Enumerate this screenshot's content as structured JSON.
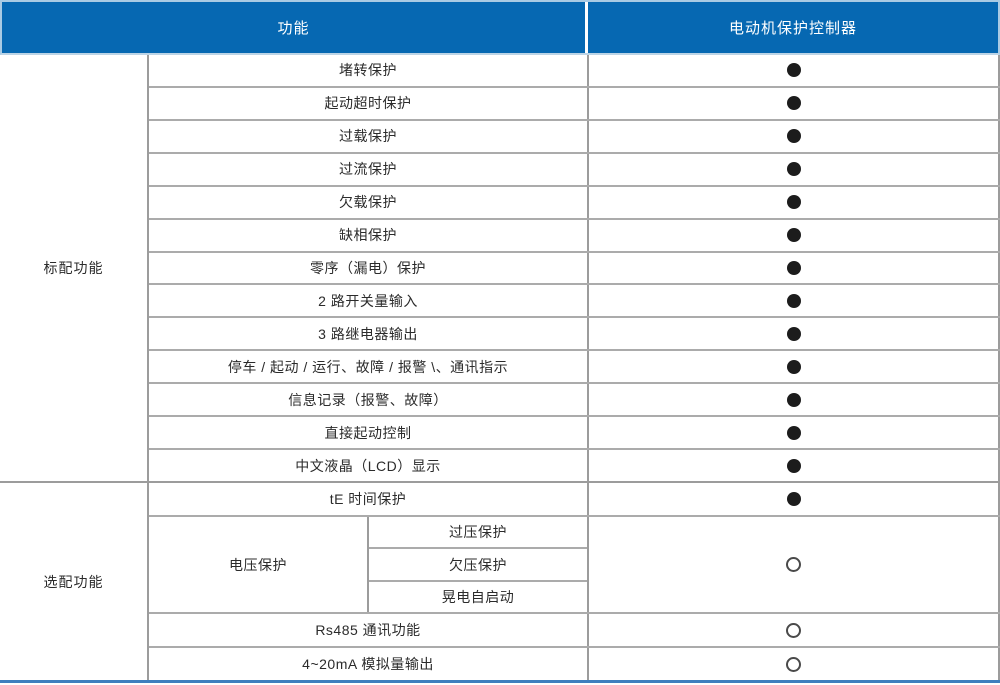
{
  "header": {
    "function_col": "功能",
    "device_col": "电动机保护控制器"
  },
  "colors": {
    "header_blue": "#0668b2",
    "header_light_border": "#a9cbe4",
    "row_border_gray": "#9c9c9c",
    "bottom_line_blue": "#3f7fbe",
    "mark_black": "#1c1c1c"
  },
  "marks_legend": {
    "filled": "included",
    "open": "optional"
  },
  "sections": [
    {
      "category": "标配功能",
      "rows": [
        {
          "label": "堵转保护",
          "mark": "filled"
        },
        {
          "label": "起动超时保护",
          "mark": "filled"
        },
        {
          "label": "过载保护",
          "mark": "filled"
        },
        {
          "label": "过流保护",
          "mark": "filled"
        },
        {
          "label": "欠载保护",
          "mark": "filled"
        },
        {
          "label": "缺相保护",
          "mark": "filled"
        },
        {
          "label": "零序（漏电）保护",
          "mark": "filled"
        },
        {
          "label": "2 路开关量输入",
          "mark": "filled"
        },
        {
          "label": "3 路继电器输出",
          "mark": "filled"
        },
        {
          "label": "停车 / 起动 / 运行、故障 / 报警 \\、通讯指示",
          "mark": "filled"
        },
        {
          "label": "信息记录（报警、故障）",
          "mark": "filled"
        },
        {
          "label": "直接起动控制",
          "mark": "filled"
        },
        {
          "label": "中文液晶（LCD）显示",
          "mark": "filled"
        }
      ]
    },
    {
      "category": "选配功能",
      "rows": [
        {
          "label": "tE 时间保护",
          "mark": "filled"
        },
        {
          "group_label": "电压保护",
          "sub_rows": [
            "过压保护",
            "欠压保护",
            "晃电自启动"
          ],
          "mark": "open"
        },
        {
          "label": "Rs485 通讯功能",
          "mark": "open"
        },
        {
          "label": "4~20mA 模拟量输出",
          "mark": "open"
        }
      ]
    }
  ]
}
